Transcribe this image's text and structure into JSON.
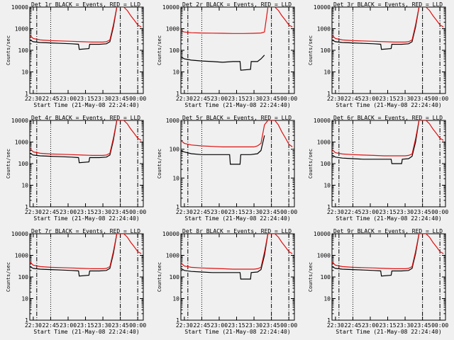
{
  "colors": {
    "background": "#f0f0f0",
    "events": "#000000",
    "lld": "#e01010",
    "axis": "#000000"
  },
  "chart_data": [
    {
      "type": "line",
      "title": "Det 1r BLACK = Events, RED = LLD",
      "xlabel": "Start Time (21-May-08 22:24:40)",
      "ylabel": "Counts/sec",
      "yscale": "log",
      "ylim": [
        1,
        10000
      ],
      "xlim": [
        22.45,
        24.08
      ],
      "xticks": [
        "22:30",
        "22:45",
        "23:00",
        "23:15",
        "23:30",
        "23:45",
        "00:00"
      ],
      "yticks": [
        "1",
        "10",
        "100",
        "1000",
        "10000"
      ],
      "markers": {
        "dash_dot": [
          22.55,
          23.75,
          24.0
        ],
        "dotted": [
          22.75
        ]
      },
      "series": [
        {
          "name": "Events",
          "x": [
            22.45,
            22.5,
            22.6,
            22.75,
            22.9,
            23.05,
            23.15,
            23.16,
            23.3,
            23.31,
            23.45,
            23.55,
            23.6,
            23.65,
            23.7
          ],
          "y": [
            300,
            250,
            230,
            220,
            210,
            200,
            190,
            110,
            120,
            190,
            190,
            200,
            250,
            1200,
            10000
          ]
        },
        {
          "name": "LLD",
          "x": [
            22.45,
            22.5,
            22.6,
            22.75,
            22.9,
            23.05,
            23.2,
            23.35,
            23.5,
            23.55,
            23.6,
            23.65,
            23.7,
            23.8,
            23.85,
            23.9,
            23.95,
            24.0,
            24.05
          ],
          "y": [
            500,
            350,
            300,
            280,
            270,
            260,
            250,
            240,
            240,
            250,
            300,
            1500,
            12000,
            10000,
            7000,
            4000,
            2500,
            1500,
            1200
          ]
        }
      ]
    },
    {
      "type": "line",
      "title": "Det 2r BLACK = Events, RED = LLD",
      "xlabel": "Start Time (21-May-08 22:24:40)",
      "ylabel": "Counts/sec",
      "yscale": "log",
      "ylim": [
        1,
        10000
      ],
      "xlim": [
        22.45,
        24.08
      ],
      "xticks": [
        "22:30",
        "22:45",
        "23:00",
        "23:15",
        "23:30",
        "23:45",
        "00:00"
      ],
      "yticks": [
        "1",
        "10",
        "100",
        "1000",
        "10000"
      ],
      "markers": {
        "dash_dot": [
          22.55,
          23.75,
          24.0
        ],
        "dotted": [
          22.75
        ]
      },
      "series": [
        {
          "name": "Events",
          "x": [
            22.45,
            22.5,
            22.6,
            22.75,
            22.9,
            23.05,
            23.2,
            23.3,
            23.31,
            23.45,
            23.46,
            23.55,
            23.6,
            23.65
          ],
          "y": [
            50,
            40,
            35,
            32,
            30,
            28,
            30,
            30,
            12,
            13,
            30,
            30,
            40,
            60
          ]
        },
        {
          "name": "LLD",
          "x": [
            22.45,
            22.5,
            22.6,
            22.75,
            22.9,
            23.05,
            23.2,
            23.35,
            23.5,
            23.6,
            23.65,
            23.7,
            23.8,
            23.85,
            23.9,
            23.95,
            24.0,
            24.05
          ],
          "y": [
            800,
            700,
            650,
            630,
            620,
            610,
            600,
            600,
            610,
            630,
            700,
            12000,
            10000,
            7000,
            4000,
            2500,
            1500,
            1200
          ]
        }
      ]
    },
    {
      "type": "line",
      "title": "Det 3r BLACK = Events, RED = LLD",
      "xlabel": "Start Time (21-May-08 22:24:40)",
      "ylabel": "Counts/sec",
      "yscale": "log",
      "ylim": [
        1,
        10000
      ],
      "xlim": [
        22.45,
        24.08
      ],
      "xticks": [
        "22:30",
        "22:45",
        "23:00",
        "23:15",
        "23:30",
        "23:45",
        "00:00"
      ],
      "yticks": [
        "1",
        "10",
        "100",
        "1000",
        "10000"
      ],
      "markers": {
        "dash_dot": [
          22.55,
          23.75,
          24.0
        ],
        "dotted": [
          22.75
        ]
      },
      "series": [
        {
          "name": "Events",
          "x": [
            22.45,
            22.5,
            22.6,
            22.75,
            22.9,
            23.05,
            23.15,
            23.16,
            23.3,
            23.31,
            23.45,
            23.55,
            23.6,
            23.65,
            23.7
          ],
          "y": [
            300,
            250,
            230,
            220,
            210,
            200,
            190,
            110,
            120,
            190,
            190,
            200,
            250,
            1200,
            10000
          ]
        },
        {
          "name": "LLD",
          "x": [
            22.45,
            22.5,
            22.6,
            22.75,
            22.9,
            23.05,
            23.2,
            23.35,
            23.5,
            23.55,
            23.6,
            23.65,
            23.7,
            23.8,
            23.85,
            23.9,
            23.95,
            24.0,
            24.05
          ],
          "y": [
            500,
            350,
            300,
            280,
            270,
            260,
            250,
            240,
            240,
            250,
            300,
            1500,
            12000,
            10000,
            7000,
            4000,
            2500,
            1500,
            1200
          ]
        }
      ]
    },
    {
      "type": "line",
      "title": "Det 4r BLACK = Events, RED = LLD",
      "xlabel": "Start Time (21-May-08 22:24:40)",
      "ylabel": "Counts/sec",
      "yscale": "log",
      "ylim": [
        1,
        10000
      ],
      "xlim": [
        22.45,
        24.08
      ],
      "xticks": [
        "22:30",
        "22:45",
        "23:00",
        "23:15",
        "23:30",
        "23:45",
        "00:00"
      ],
      "yticks": [
        "1",
        "10",
        "100",
        "1000",
        "10000"
      ],
      "markers": {
        "dash_dot": [
          22.55,
          23.75,
          24.0
        ],
        "dotted": [
          22.75
        ]
      },
      "series": [
        {
          "name": "Events",
          "x": [
            22.45,
            22.5,
            22.6,
            22.75,
            22.9,
            23.05,
            23.15,
            23.16,
            23.3,
            23.31,
            23.45,
            23.55,
            23.6,
            23.65,
            23.7
          ],
          "y": [
            300,
            250,
            230,
            220,
            210,
            200,
            190,
            110,
            120,
            190,
            190,
            200,
            250,
            1200,
            10000
          ]
        },
        {
          "name": "LLD",
          "x": [
            22.45,
            22.5,
            22.6,
            22.75,
            22.9,
            23.05,
            23.2,
            23.35,
            23.5,
            23.55,
            23.6,
            23.65,
            23.7,
            23.8,
            23.85,
            23.9,
            23.95,
            24.0,
            24.05
          ],
          "y": [
            500,
            350,
            300,
            280,
            270,
            260,
            250,
            240,
            240,
            250,
            300,
            1500,
            12000,
            10000,
            7000,
            4000,
            2500,
            1500,
            1200
          ]
        }
      ]
    },
    {
      "type": "line",
      "title": "Det 5r BLACK = Events, RED = LLD",
      "xlabel": "Start Time (21-May-08 22:24:40)",
      "ylabel": "Counts/sec",
      "yscale": "log",
      "ylim": [
        1,
        1000
      ],
      "xlim": [
        22.45,
        24.08
      ],
      "xticks": [
        "22:30",
        "22:45",
        "23:00",
        "23:15",
        "23:30",
        "23:45",
        "00:00"
      ],
      "yticks": [
        "1",
        "10",
        "100",
        "1000"
      ],
      "markers": {
        "dash_dot": [
          22.55,
          23.75,
          24.0
        ],
        "dotted": [
          22.75
        ]
      },
      "series": [
        {
          "name": "Events",
          "x": [
            22.45,
            22.5,
            22.6,
            22.75,
            22.9,
            23.05,
            23.15,
            23.16,
            23.3,
            23.31,
            23.45,
            23.55,
            23.6,
            23.65
          ],
          "y": [
            90,
            80,
            70,
            65,
            65,
            65,
            65,
            30,
            30,
            65,
            65,
            70,
            90,
            300
          ]
        },
        {
          "name": "LLD",
          "x": [
            22.45,
            22.5,
            22.6,
            22.75,
            22.9,
            23.05,
            23.2,
            23.35,
            23.5,
            23.55,
            23.6,
            23.65,
            23.7,
            23.8,
            23.85,
            23.9,
            23.95,
            24.0,
            24.05
          ],
          "y": [
            200,
            160,
            140,
            130,
            125,
            120,
            120,
            120,
            120,
            130,
            160,
            700,
            1200,
            1000,
            700,
            400,
            250,
            150,
            120
          ]
        }
      ]
    },
    {
      "type": "line",
      "title": "Det 6r BLACK = Events, RED = LLD",
      "xlabel": "Start Time (21-May-08 22:24:40)",
      "ylabel": "Counts/sec",
      "yscale": "log",
      "ylim": [
        1,
        10000
      ],
      "xlim": [
        22.45,
        24.08
      ],
      "xticks": [
        "22:30",
        "22:45",
        "23:00",
        "23:15",
        "23:30",
        "23:45",
        "00:00"
      ],
      "yticks": [
        "1",
        "10",
        "100",
        "1000",
        "10000"
      ],
      "markers": {
        "dash_dot": [
          22.55,
          23.75,
          24.0
        ],
        "dotted": [
          22.75
        ]
      },
      "series": [
        {
          "name": "Events",
          "x": [
            22.45,
            22.5,
            22.6,
            22.75,
            22.9,
            23.05,
            23.2,
            23.3,
            23.31,
            23.45,
            23.46,
            23.55,
            23.6,
            23.65,
            23.7
          ],
          "y": [
            250,
            200,
            180,
            170,
            160,
            160,
            160,
            160,
            100,
            100,
            160,
            170,
            220,
            1000,
            10000
          ]
        },
        {
          "name": "LLD",
          "x": [
            22.45,
            22.5,
            22.6,
            22.75,
            22.9,
            23.05,
            23.2,
            23.35,
            23.5,
            23.55,
            23.6,
            23.65,
            23.7,
            23.8,
            23.85,
            23.9,
            23.95,
            24.0,
            24.05
          ],
          "y": [
            450,
            320,
            280,
            260,
            250,
            240,
            230,
            230,
            230,
            240,
            280,
            1400,
            12000,
            10000,
            7000,
            4000,
            2500,
            1500,
            1200
          ]
        }
      ]
    },
    {
      "type": "line",
      "title": "Det 7r BLACK = Events, RED = LLD",
      "xlabel": "Start Time (21-May-08 22:24:40)",
      "ylabel": "Counts/sec",
      "yscale": "log",
      "ylim": [
        1,
        10000
      ],
      "xlim": [
        22.45,
        24.08
      ],
      "xticks": [
        "22:30",
        "22:45",
        "23:00",
        "23:15",
        "23:30",
        "23:45",
        "00:00"
      ],
      "yticks": [
        "1",
        "10",
        "100",
        "1000",
        "10000"
      ],
      "markers": {
        "dash_dot": [
          22.55,
          23.75,
          24.0
        ],
        "dotted": [
          22.75
        ]
      },
      "series": [
        {
          "name": "Events",
          "x": [
            22.45,
            22.5,
            22.6,
            22.75,
            22.9,
            23.05,
            23.15,
            23.16,
            23.3,
            23.31,
            23.45,
            23.55,
            23.6,
            23.65,
            23.7
          ],
          "y": [
            300,
            250,
            230,
            220,
            210,
            200,
            190,
            110,
            120,
            190,
            190,
            200,
            250,
            1200,
            10000
          ]
        },
        {
          "name": "LLD",
          "x": [
            22.45,
            22.5,
            22.6,
            22.75,
            22.9,
            23.05,
            23.2,
            23.35,
            23.5,
            23.55,
            23.6,
            23.65,
            23.7,
            23.8,
            23.85,
            23.9,
            23.95,
            24.0,
            24.05
          ],
          "y": [
            500,
            350,
            300,
            280,
            270,
            260,
            250,
            240,
            240,
            250,
            300,
            1500,
            12000,
            10000,
            7000,
            4000,
            2500,
            1500,
            1200
          ]
        }
      ]
    },
    {
      "type": "line",
      "title": "Det 8r BLACK = Events, RED = LLD",
      "xlabel": "Start Time (21-May-08 22:24:40)",
      "ylabel": "Counts/sec",
      "yscale": "log",
      "ylim": [
        1,
        10000
      ],
      "xlim": [
        22.45,
        24.08
      ],
      "xticks": [
        "22:30",
        "22:45",
        "23:00",
        "23:15",
        "23:30",
        "23:45",
        "00:00"
      ],
      "yticks": [
        "1",
        "10",
        "100",
        "1000",
        "10000"
      ],
      "markers": {
        "dash_dot": [
          22.55,
          23.75,
          24.0
        ],
        "dotted": [
          22.75
        ]
      },
      "series": [
        {
          "name": "Events",
          "x": [
            22.45,
            22.5,
            22.6,
            22.75,
            22.9,
            23.05,
            23.2,
            23.3,
            23.31,
            23.45,
            23.46,
            23.55,
            23.6,
            23.65,
            23.7
          ],
          "y": [
            250,
            200,
            180,
            170,
            160,
            160,
            160,
            160,
            80,
            80,
            160,
            170,
            220,
            1000,
            10000
          ]
        },
        {
          "name": "LLD",
          "x": [
            22.45,
            22.5,
            22.6,
            22.75,
            22.9,
            23.05,
            23.2,
            23.35,
            23.5,
            23.55,
            23.6,
            23.65,
            23.7,
            23.8,
            23.85,
            23.9,
            23.95,
            24.0,
            24.05
          ],
          "y": [
            450,
            320,
            280,
            260,
            250,
            240,
            230,
            230,
            230,
            240,
            280,
            1400,
            12000,
            10000,
            7000,
            4000,
            2500,
            1500,
            1200
          ]
        }
      ]
    },
    {
      "type": "line",
      "title": "Det 9r BLACK = Events, RED = LLD",
      "xlabel": "Start Time (21-May-08 22:24:40)",
      "ylabel": "Counts/sec",
      "yscale": "log",
      "ylim": [
        1,
        10000
      ],
      "xlim": [
        22.45,
        24.08
      ],
      "xticks": [
        "22:30",
        "22:45",
        "23:00",
        "23:15",
        "23:30",
        "23:45",
        "00:00"
      ],
      "yticks": [
        "1",
        "10",
        "100",
        "1000",
        "10000"
      ],
      "markers": {
        "dash_dot": [
          22.55,
          23.75,
          24.0
        ],
        "dotted": [
          22.75
        ]
      },
      "series": [
        {
          "name": "Events",
          "x": [
            22.45,
            22.5,
            22.6,
            22.75,
            22.9,
            23.05,
            23.15,
            23.16,
            23.3,
            23.31,
            23.45,
            23.55,
            23.6,
            23.65,
            23.7
          ],
          "y": [
            300,
            250,
            230,
            220,
            210,
            200,
            190,
            110,
            120,
            190,
            190,
            200,
            250,
            1200,
            10000
          ]
        },
        {
          "name": "LLD",
          "x": [
            22.45,
            22.5,
            22.6,
            22.75,
            22.9,
            23.05,
            23.2,
            23.35,
            23.5,
            23.55,
            23.6,
            23.65,
            23.7,
            23.8,
            23.85,
            23.9,
            23.95,
            24.0,
            24.05
          ],
          "y": [
            500,
            350,
            300,
            280,
            270,
            260,
            250,
            240,
            240,
            250,
            300,
            1500,
            12000,
            10000,
            7000,
            4000,
            2500,
            1500,
            1200
          ]
        }
      ]
    }
  ]
}
